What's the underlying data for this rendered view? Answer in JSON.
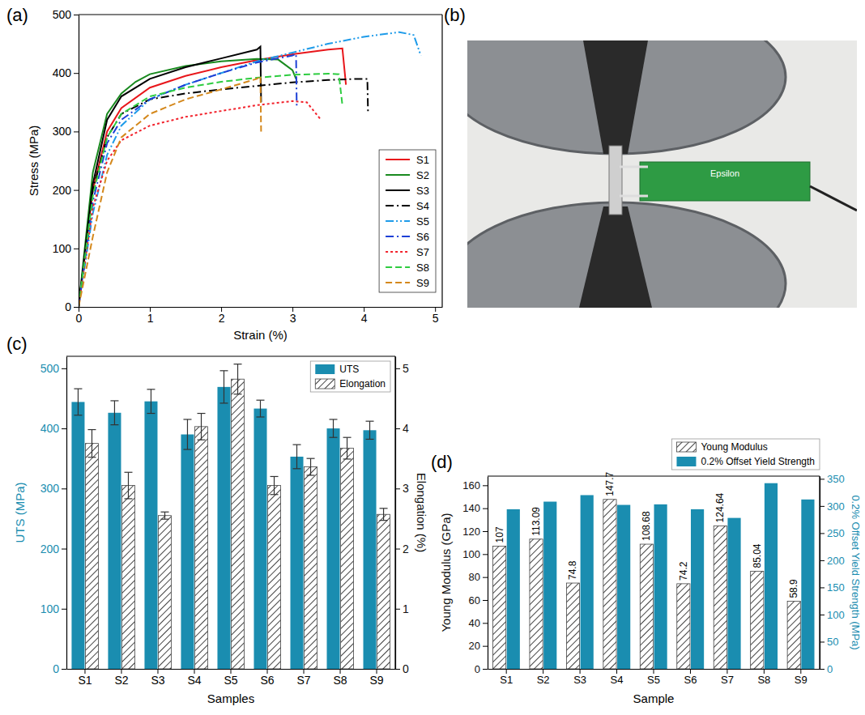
{
  "chart_data": [
    {
      "panel": "(a)",
      "type": "line",
      "x_label": "Strain (%)",
      "y_label": "Stress (MPa)",
      "xlim": [
        0,
        5.1
      ],
      "ylim": [
        0,
        500
      ],
      "xticks": [
        0,
        1,
        2,
        3,
        4,
        5
      ],
      "yticks": [
        0,
        100,
        200,
        300,
        400,
        500
      ],
      "legend": "lower right",
      "series": [
        {
          "name": "S1",
          "color": "#e8161b",
          "line_style": "solid",
          "x": [
            0,
            0.2,
            0.4,
            0.6,
            1.0,
            1.5,
            2.0,
            2.5,
            3.0,
            3.5,
            3.7,
            3.75
          ],
          "values": [
            0,
            200,
            300,
            340,
            375,
            395,
            410,
            422,
            432,
            440,
            442,
            380
          ]
        },
        {
          "name": "S2",
          "color": "#198a1f",
          "line_style": "solid",
          "x": [
            0,
            0.2,
            0.4,
            0.6,
            0.8,
            1.0,
            1.5,
            2.0,
            2.5,
            2.8,
            3.0,
            3.05
          ],
          "values": [
            0,
            230,
            330,
            365,
            385,
            398,
            412,
            420,
            424,
            423,
            405,
            390
          ]
        },
        {
          "name": "S3",
          "color": "#000000",
          "line_style": "solid",
          "x": [
            0,
            0.2,
            0.4,
            0.6,
            1.0,
            1.5,
            2.0,
            2.5,
            2.55,
            2.56
          ],
          "values": [
            0,
            210,
            320,
            360,
            390,
            410,
            425,
            440,
            445,
            350
          ]
        },
        {
          "name": "S4",
          "color": "#000000",
          "line_style": "dashdot",
          "x": [
            0,
            0.2,
            0.4,
            0.6,
            1.0,
            1.5,
            2.0,
            2.5,
            3.0,
            3.5,
            3.9,
            4.05,
            4.06
          ],
          "values": [
            0,
            200,
            290,
            330,
            355,
            365,
            372,
            378,
            384,
            388,
            390,
            390,
            330
          ]
        },
        {
          "name": "S5",
          "color": "#1e9be9",
          "line_style": "dashdotdot",
          "x": [
            0,
            0.2,
            0.4,
            0.6,
            1.0,
            1.5,
            2.0,
            2.5,
            3.0,
            3.5,
            4.0,
            4.5,
            4.7,
            4.8
          ],
          "values": [
            0,
            160,
            260,
            310,
            355,
            380,
            400,
            420,
            435,
            450,
            462,
            470,
            465,
            430
          ]
        },
        {
          "name": "S6",
          "color": "#1c3fd6",
          "line_style": "dashdot",
          "x": [
            0,
            0.2,
            0.4,
            0.6,
            1.0,
            1.5,
            2.0,
            2.5,
            3.0,
            3.05,
            3.06
          ],
          "values": [
            0,
            180,
            280,
            320,
            355,
            380,
            400,
            418,
            430,
            433,
            340
          ]
        },
        {
          "name": "S7",
          "color": "#f2212b",
          "line_style": "dotted",
          "x": [
            0,
            0.2,
            0.4,
            0.6,
            1.0,
            1.5,
            2.0,
            2.5,
            3.0,
            3.2,
            3.4
          ],
          "values": [
            0,
            170,
            250,
            285,
            310,
            325,
            335,
            345,
            352,
            350,
            320
          ]
        },
        {
          "name": "S8",
          "color": "#2ecc40",
          "line_style": "dashed",
          "x": [
            0,
            0.2,
            0.4,
            0.6,
            1.0,
            1.5,
            2.0,
            2.5,
            3.0,
            3.5,
            3.65,
            3.7
          ],
          "values": [
            0,
            190,
            290,
            330,
            360,
            375,
            385,
            392,
            397,
            399,
            398,
            345
          ]
        },
        {
          "name": "S9",
          "color": "#d4881c",
          "line_style": "dashed",
          "x": [
            0,
            0.2,
            0.4,
            0.6,
            1.0,
            1.5,
            2.0,
            2.5,
            2.55,
            2.56
          ],
          "values": [
            0,
            120,
            230,
            290,
            330,
            355,
            372,
            390,
            395,
            300
          ]
        }
      ]
    },
    {
      "panel": "(c)",
      "type": "bar",
      "x_label": "Samples",
      "y_label": "UTS (MPa)",
      "y2_label": "Elongation (%)",
      "categories": [
        "S1",
        "S2",
        "S3",
        "S4",
        "S5",
        "S6",
        "S7",
        "S8",
        "S9"
      ],
      "ylim": [
        0,
        520
      ],
      "yticks": [
        0,
        100,
        200,
        300,
        400,
        500
      ],
      "y2lim": [
        0,
        5.2
      ],
      "y2ticks": [
        0,
        1,
        2,
        3,
        4,
        5
      ],
      "legend": "upper right",
      "series": [
        {
          "name": "UTS",
          "color": "#1a8db0",
          "values": [
            444,
            426,
            445,
            390,
            469,
            433,
            353,
            400,
            397
          ],
          "errors": [
            22,
            20,
            20,
            25,
            27,
            14,
            20,
            15,
            15
          ]
        },
        {
          "name": "Elongation",
          "color": "#444444",
          "marker": "hatch",
          "axis": "y2",
          "values": [
            3.75,
            3.05,
            2.55,
            4.03,
            4.82,
            3.05,
            3.36,
            3.67,
            2.57
          ],
          "errors": [
            0.23,
            0.22,
            0.06,
            0.22,
            0.25,
            0.15,
            0.14,
            0.18,
            0.1
          ]
        }
      ]
    },
    {
      "panel": "(d)",
      "type": "bar",
      "x_label": "Sample",
      "y_label": "Young Modulus (GPa)",
      "y2_label": "0.2% Offset Yield Strength (MPa)",
      "categories": [
        "S1",
        "S2",
        "S3",
        "S4",
        "S5",
        "S6",
        "S7",
        "S8",
        "S9"
      ],
      "ylim": [
        0,
        168
      ],
      "yticks": [
        0,
        20,
        40,
        60,
        80,
        100,
        120,
        140,
        160
      ],
      "y2lim": [
        0,
        355
      ],
      "y2ticks": [
        0,
        50,
        100,
        150,
        200,
        250,
        300,
        350
      ],
      "legend": "top right",
      "series": [
        {
          "name": "Young Modulus",
          "color": "#444444",
          "marker": "hatch",
          "data_labels": true,
          "values": [
            107,
            113.09,
            74.8,
            147.7,
            108.68,
            74.2,
            124.64,
            85.04,
            58.9
          ]
        },
        {
          "name": "0.2% Offset Yield Strength",
          "color": "#1a8db0",
          "axis": "y2",
          "values": [
            294,
            308,
            320,
            302,
            303,
            294,
            278,
            342,
            312
          ]
        }
      ]
    }
  ],
  "photo": {
    "panel": "(b)",
    "text": "Epsilon"
  }
}
